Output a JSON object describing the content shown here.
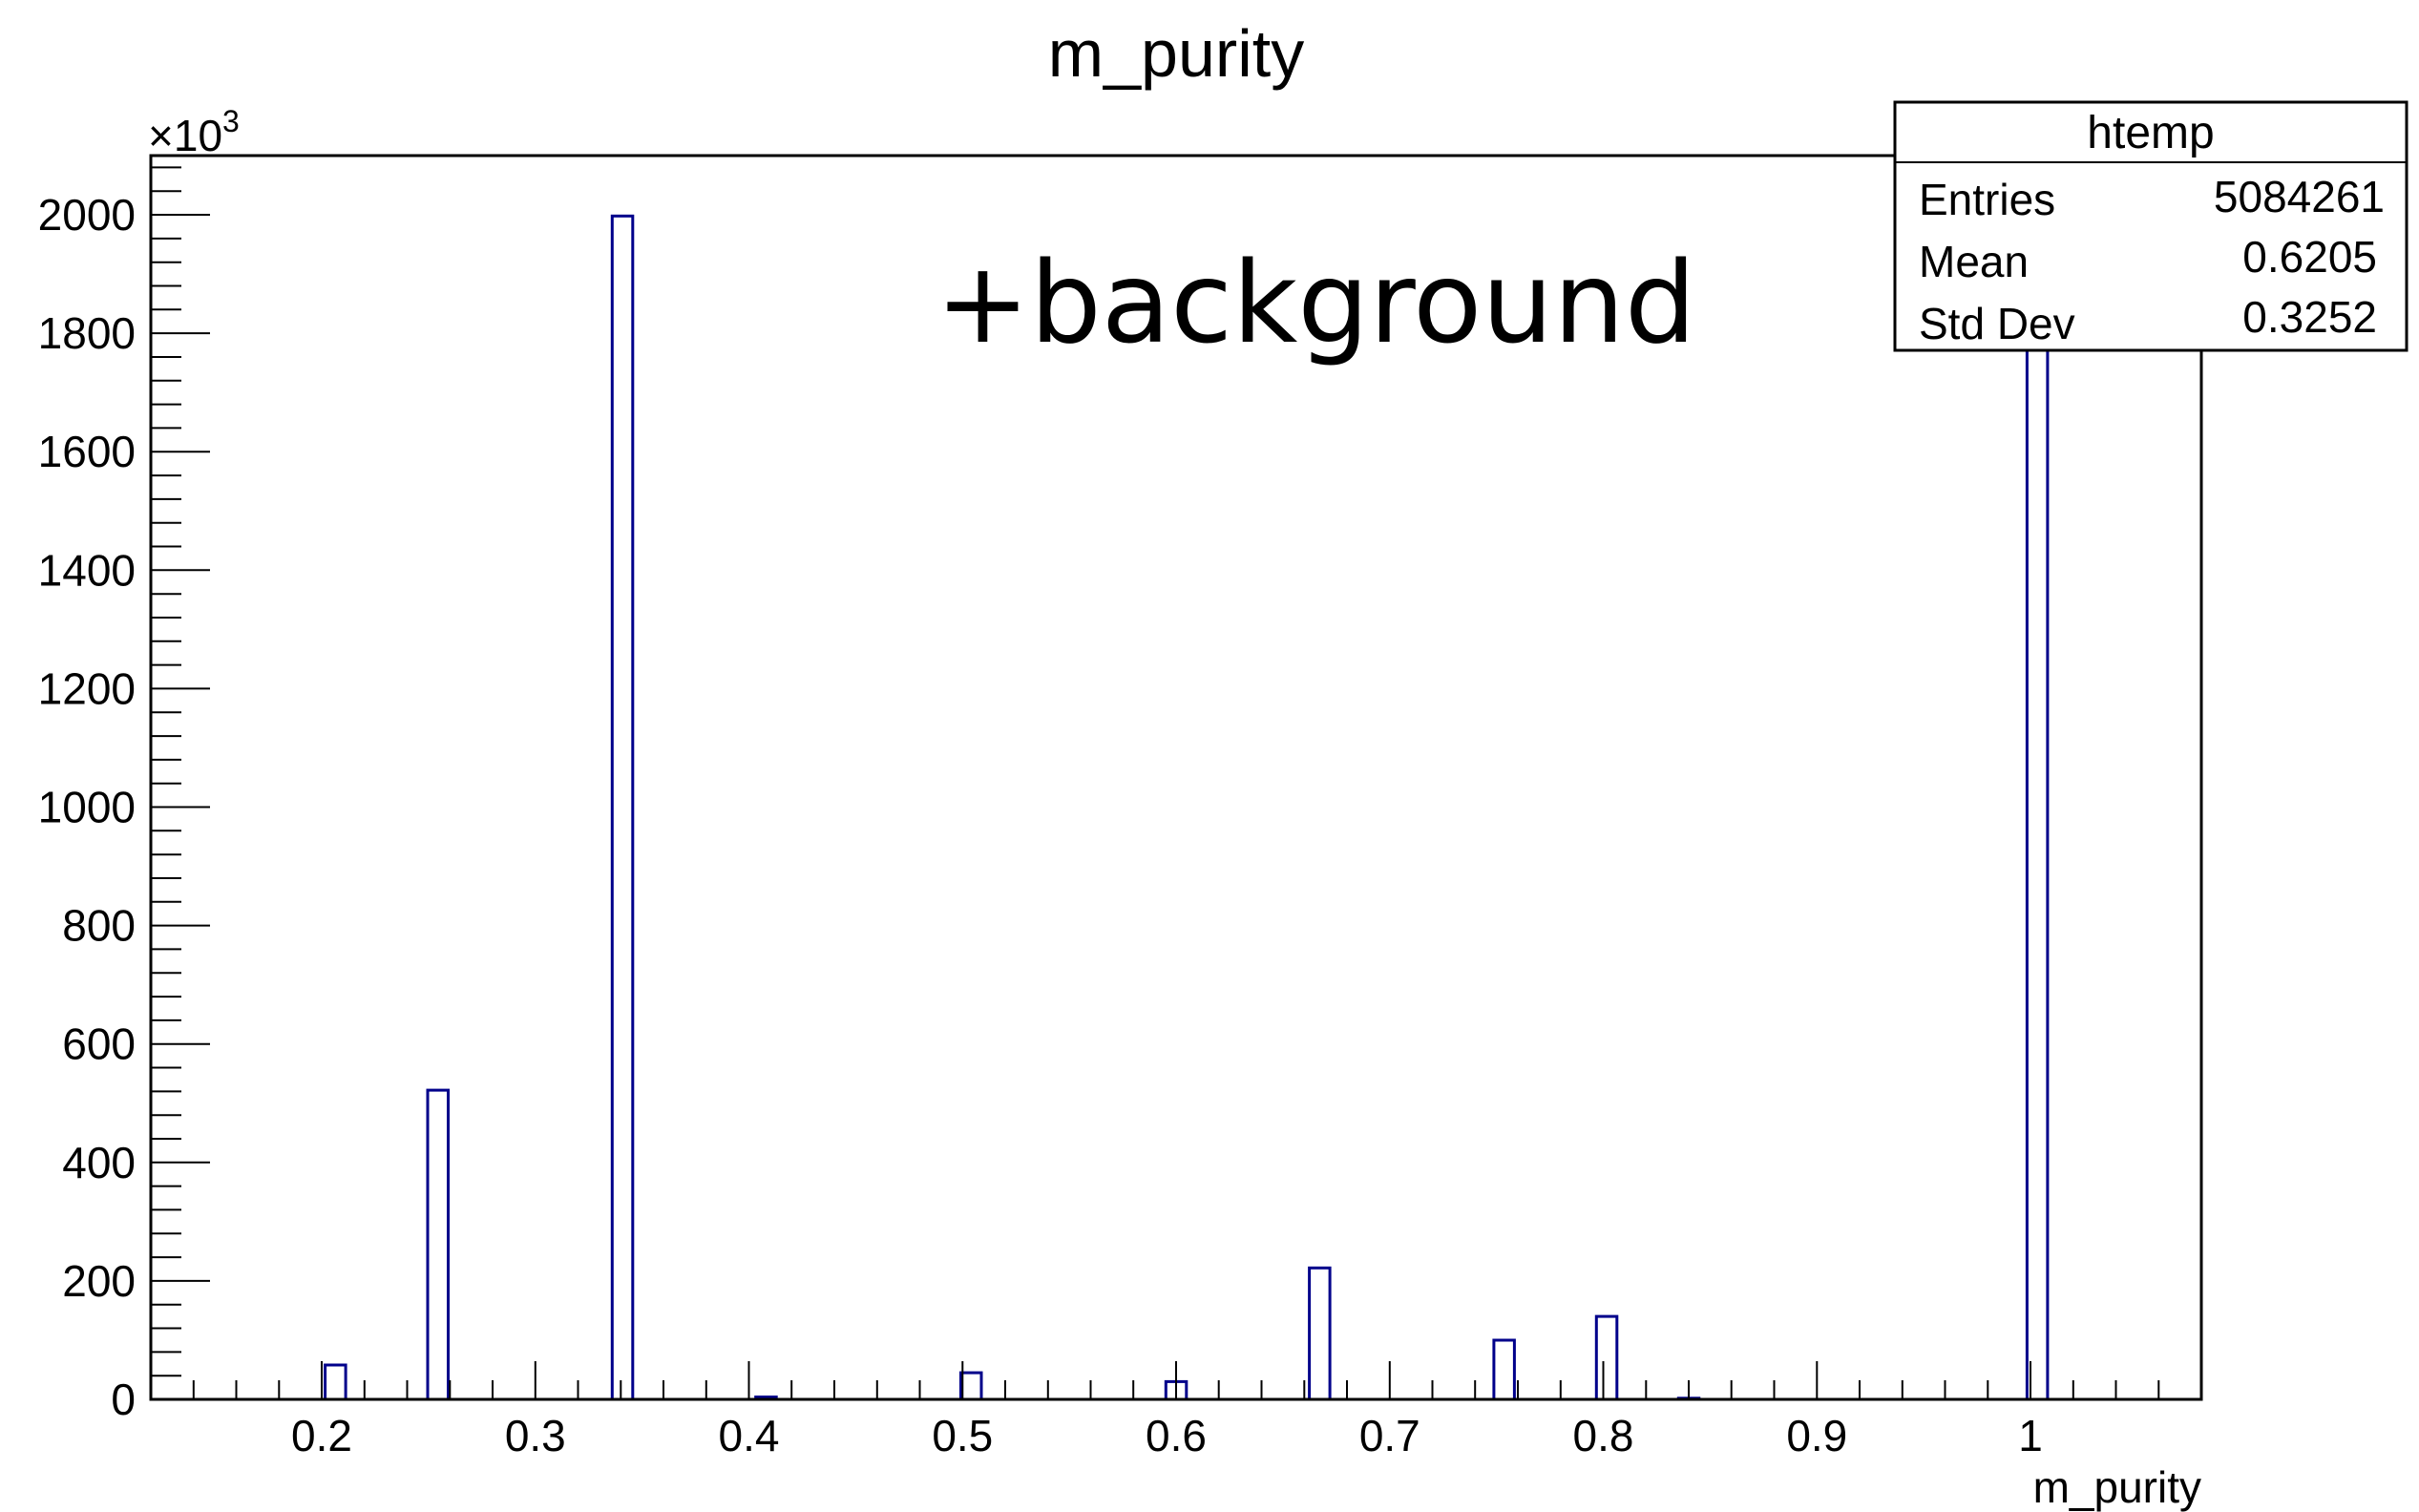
{
  "chart_data": {
    "type": "bar",
    "title": "m_purity",
    "xlabel": "m_purity",
    "ylabel": "",
    "y_multiplier_label": "×10",
    "y_multiplier_exponent": "3",
    "xlim": [
      0.12,
      1.08
    ],
    "ylim": [
      0,
      2100
    ],
    "x_ticks": [
      0.2,
      0.3,
      0.4,
      0.5,
      0.6,
      0.7,
      0.8,
      0.9,
      1
    ],
    "x_tick_labels": [
      "0.2",
      "0.3",
      "0.4",
      "0.5",
      "0.6",
      "0.7",
      "0.8",
      "0.9",
      "1"
    ],
    "y_ticks": [
      0,
      200,
      400,
      600,
      800,
      1000,
      1200,
      1400,
      1600,
      1800,
      2000
    ],
    "y_tick_labels": [
      "0",
      "200",
      "400",
      "600",
      "800",
      "1000",
      "1200",
      "1400",
      "1600",
      "1800",
      "2000"
    ],
    "bin_width": 0.0096,
    "bins": [
      {
        "x": 0.2016,
        "value": 58
      },
      {
        "x": 0.2496,
        "value": 522
      },
      {
        "x": 0.336,
        "value": 1998
      },
      {
        "x": 0.4032,
        "value": 4
      },
      {
        "x": 0.4992,
        "value": 45
      },
      {
        "x": 0.5952,
        "value": 30
      },
      {
        "x": 0.6624,
        "value": 222
      },
      {
        "x": 0.7488,
        "value": 100
      },
      {
        "x": 0.7968,
        "value": 140
      },
      {
        "x": 0.8352,
        "value": 2
      },
      {
        "x": 0.9984,
        "value": 2100
      }
    ],
    "line_color": "#00008b",
    "annotation": {
      "text": "+background",
      "color": "#0033ee"
    },
    "stats_box": {
      "title": "htemp",
      "rows": [
        {
          "label": "Entries",
          "value": "5084261"
        },
        {
          "label": "Mean",
          "value": "0.6205"
        },
        {
          "label": "Std Dev",
          "value": "0.3252"
        }
      ]
    },
    "grid": false,
    "legend": "top-right"
  }
}
